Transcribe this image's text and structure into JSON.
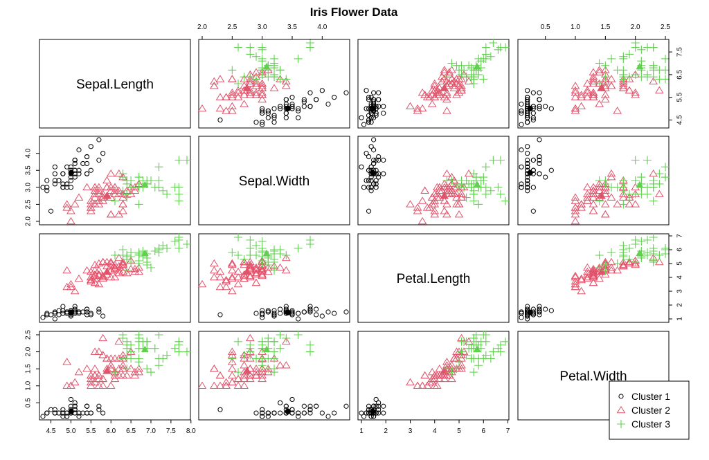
{
  "chart_data": {
    "type": "scatter",
    "title": "Iris Flower Data",
    "variables": [
      "Sepal.Length",
      "Sepal.Width",
      "Petal.Length",
      "Petal.Width"
    ],
    "ranges": {
      "Sepal.Length": [
        4.3,
        7.9
      ],
      "Sepal.Width": [
        2.0,
        4.4
      ],
      "Petal.Length": [
        1.0,
        6.9
      ],
      "Petal.Width": [
        0.1,
        2.5
      ]
    },
    "ticks": {
      "Sepal.Length": {
        "values": [
          4.5,
          5.0,
          5.5,
          6.0,
          6.5,
          7.0,
          7.5,
          8.0
        ],
        "labels": [
          "4.5",
          "5.0",
          "5.5",
          "6.0",
          "6.5",
          "7.0",
          "7.5",
          "8.0"
        ],
        "right_values": [
          4.5,
          5.5,
          6.5,
          7.5
        ],
        "right_labels": [
          "4.5",
          "5.5",
          "6.5",
          "7.5"
        ]
      },
      "Sepal.Width": {
        "values": [
          2.0,
          2.5,
          3.0,
          3.5,
          4.0
        ],
        "labels": [
          "2.0",
          "2.5",
          "3.0",
          "3.5",
          "4.0"
        ]
      },
      "Petal.Length": {
        "values": [
          1,
          2,
          3,
          4,
          5,
          6,
          7
        ],
        "labels": [
          "1",
          "2",
          "3",
          "4",
          "5",
          "6",
          "7"
        ]
      },
      "Petal.Width": {
        "values": [
          0.5,
          1.0,
          1.5,
          2.0,
          2.5
        ],
        "labels": [
          "0.5",
          "1.0",
          "1.5",
          "2.0",
          "2.5"
        ]
      }
    },
    "legend": {
      "position": "bottom-right",
      "entries": [
        {
          "label": "Cluster 1",
          "marker": "circle",
          "color": "#000000"
        },
        {
          "label": "Cluster 2",
          "marker": "triangle",
          "color": "#DF536B"
        },
        {
          "label": "Cluster 3",
          "marker": "plus",
          "color": "#61D04F"
        }
      ]
    },
    "series": [
      {
        "label": "Cluster 1",
        "marker": "circle",
        "color": "#000000",
        "centroid": [
          5.006,
          3.428,
          1.462,
          0.246
        ],
        "points": [
          [
            5.1,
            3.5,
            1.4,
            0.2
          ],
          [
            4.9,
            3.0,
            1.4,
            0.2
          ],
          [
            4.7,
            3.2,
            1.3,
            0.2
          ],
          [
            4.6,
            3.1,
            1.5,
            0.2
          ],
          [
            5.0,
            3.6,
            1.4,
            0.2
          ],
          [
            5.4,
            3.9,
            1.7,
            0.4
          ],
          [
            4.6,
            3.4,
            1.4,
            0.3
          ],
          [
            5.0,
            3.4,
            1.5,
            0.2
          ],
          [
            4.4,
            2.9,
            1.4,
            0.2
          ],
          [
            4.9,
            3.1,
            1.5,
            0.1
          ],
          [
            5.4,
            3.7,
            1.5,
            0.2
          ],
          [
            4.8,
            3.4,
            1.6,
            0.2
          ],
          [
            4.8,
            3.0,
            1.4,
            0.1
          ],
          [
            4.3,
            3.0,
            1.1,
            0.1
          ],
          [
            5.8,
            4.0,
            1.2,
            0.2
          ],
          [
            5.7,
            4.4,
            1.5,
            0.4
          ],
          [
            5.4,
            3.9,
            1.3,
            0.4
          ],
          [
            5.1,
            3.5,
            1.4,
            0.3
          ],
          [
            5.7,
            3.8,
            1.7,
            0.3
          ],
          [
            5.1,
            3.8,
            1.5,
            0.3
          ],
          [
            5.4,
            3.4,
            1.7,
            0.2
          ],
          [
            5.1,
            3.7,
            1.5,
            0.4
          ],
          [
            4.6,
            3.6,
            1.0,
            0.2
          ],
          [
            5.1,
            3.3,
            1.7,
            0.5
          ],
          [
            4.8,
            3.4,
            1.9,
            0.2
          ],
          [
            5.0,
            3.0,
            1.6,
            0.2
          ],
          [
            5.0,
            3.4,
            1.6,
            0.4
          ],
          [
            5.2,
            3.5,
            1.5,
            0.2
          ],
          [
            5.2,
            3.4,
            1.4,
            0.2
          ],
          [
            4.7,
            3.2,
            1.6,
            0.2
          ],
          [
            4.8,
            3.1,
            1.6,
            0.2
          ],
          [
            5.4,
            3.4,
            1.5,
            0.4
          ],
          [
            5.2,
            4.1,
            1.5,
            0.1
          ],
          [
            5.5,
            4.2,
            1.4,
            0.2
          ],
          [
            4.9,
            3.1,
            1.5,
            0.2
          ],
          [
            5.0,
            3.2,
            1.2,
            0.2
          ],
          [
            5.5,
            3.5,
            1.3,
            0.2
          ],
          [
            4.9,
            3.6,
            1.4,
            0.1
          ],
          [
            4.4,
            3.0,
            1.3,
            0.2
          ],
          [
            5.1,
            3.4,
            1.5,
            0.2
          ],
          [
            5.0,
            3.5,
            1.3,
            0.3
          ],
          [
            4.5,
            2.3,
            1.3,
            0.3
          ],
          [
            4.4,
            3.2,
            1.3,
            0.2
          ],
          [
            5.0,
            3.5,
            1.6,
            0.6
          ],
          [
            5.1,
            3.8,
            1.9,
            0.4
          ],
          [
            4.8,
            3.0,
            1.4,
            0.3
          ],
          [
            5.1,
            3.8,
            1.6,
            0.2
          ],
          [
            4.6,
            3.2,
            1.4,
            0.2
          ],
          [
            5.3,
            3.7,
            1.5,
            0.2
          ],
          [
            5.0,
            3.3,
            1.4,
            0.2
          ]
        ]
      },
      {
        "label": "Cluster 2",
        "marker": "triangle",
        "color": "#DF536B",
        "centroid": [
          5.902,
          2.748,
          4.394,
          1.434
        ],
        "points": [
          [
            5.5,
            2.3,
            4.0,
            1.3
          ],
          [
            6.5,
            2.8,
            4.6,
            1.5
          ],
          [
            5.7,
            2.8,
            4.5,
            1.3
          ],
          [
            6.3,
            3.3,
            4.7,
            1.6
          ],
          [
            4.9,
            2.4,
            3.3,
            1.0
          ],
          [
            6.6,
            2.9,
            4.6,
            1.3
          ],
          [
            5.2,
            2.7,
            3.9,
            1.4
          ],
          [
            5.0,
            2.0,
            3.5,
            1.0
          ],
          [
            5.9,
            3.0,
            4.2,
            1.5
          ],
          [
            6.0,
            2.2,
            4.0,
            1.0
          ],
          [
            6.1,
            2.9,
            4.7,
            1.4
          ],
          [
            5.6,
            2.9,
            3.6,
            1.3
          ],
          [
            6.7,
            3.1,
            4.4,
            1.4
          ],
          [
            5.6,
            3.0,
            4.5,
            1.5
          ],
          [
            5.8,
            2.7,
            4.1,
            1.0
          ],
          [
            6.2,
            2.2,
            4.5,
            1.5
          ],
          [
            5.6,
            2.5,
            3.9,
            1.1
          ],
          [
            5.9,
            3.2,
            4.8,
            1.8
          ],
          [
            6.1,
            2.8,
            4.0,
            1.3
          ],
          [
            6.3,
            2.5,
            4.9,
            1.5
          ],
          [
            6.1,
            2.8,
            4.7,
            1.2
          ],
          [
            6.4,
            2.9,
            4.3,
            1.3
          ],
          [
            6.6,
            3.0,
            4.4,
            1.4
          ],
          [
            6.0,
            2.9,
            4.5,
            1.5
          ],
          [
            5.7,
            2.6,
            3.5,
            1.0
          ],
          [
            5.5,
            2.4,
            3.8,
            1.1
          ],
          [
            5.5,
            2.4,
            3.7,
            1.0
          ],
          [
            5.8,
            2.7,
            3.9,
            1.2
          ],
          [
            6.0,
            2.7,
            5.1,
            1.6
          ],
          [
            5.4,
            3.0,
            4.5,
            1.5
          ],
          [
            6.0,
            3.4,
            4.5,
            1.6
          ],
          [
            6.7,
            3.1,
            4.7,
            1.5
          ],
          [
            6.3,
            2.3,
            4.4,
            1.3
          ],
          [
            5.6,
            3.0,
            4.1,
            1.3
          ],
          [
            5.5,
            2.5,
            4.0,
            1.3
          ],
          [
            5.5,
            2.6,
            4.4,
            1.2
          ],
          [
            6.1,
            3.0,
            4.6,
            1.4
          ],
          [
            5.8,
            2.6,
            4.0,
            1.2
          ],
          [
            5.0,
            2.3,
            3.3,
            1.0
          ],
          [
            5.6,
            2.7,
            4.2,
            1.3
          ],
          [
            5.7,
            3.0,
            4.2,
            1.2
          ],
          [
            5.7,
            2.9,
            4.2,
            1.3
          ],
          [
            6.2,
            2.9,
            4.3,
            1.3
          ],
          [
            5.1,
            2.5,
            3.0,
            1.1
          ],
          [
            5.7,
            2.8,
            4.1,
            1.3
          ],
          [
            5.8,
            2.7,
            5.1,
            1.9
          ],
          [
            4.9,
            2.5,
            4.5,
            1.7
          ],
          [
            5.7,
            2.5,
            5.0,
            2.0
          ],
          [
            5.8,
            2.8,
            5.1,
            2.4
          ],
          [
            6.0,
            2.2,
            5.0,
            1.5
          ],
          [
            5.6,
            2.8,
            4.9,
            2.0
          ],
          [
            6.3,
            2.7,
            4.9,
            1.8
          ],
          [
            6.2,
            2.8,
            4.8,
            1.8
          ],
          [
            6.1,
            3.0,
            4.9,
            1.8
          ],
          [
            6.3,
            2.8,
            5.1,
            1.5
          ],
          [
            6.0,
            3.0,
            4.8,
            1.8
          ],
          [
            5.8,
            2.7,
            5.1,
            1.9
          ],
          [
            6.3,
            2.5,
            5.0,
            1.9
          ],
          [
            6.5,
            3.0,
            5.2,
            2.0
          ],
          [
            6.2,
            3.4,
            5.4,
            2.3
          ],
          [
            5.9,
            3.0,
            5.1,
            1.8
          ],
          [
            5.6,
            2.9,
            3.6,
            1.3
          ]
        ]
      },
      {
        "label": "Cluster 3",
        "marker": "plus",
        "color": "#61D04F",
        "centroid": [
          6.85,
          3.074,
          5.742,
          2.071
        ],
        "points": [
          [
            7.0,
            3.2,
            4.7,
            1.4
          ],
          [
            6.4,
            3.2,
            4.5,
            1.5
          ],
          [
            6.9,
            3.1,
            4.9,
            1.5
          ],
          [
            6.7,
            3.0,
            5.0,
            1.7
          ],
          [
            6.3,
            3.3,
            6.0,
            2.5
          ],
          [
            7.1,
            3.0,
            5.9,
            2.1
          ],
          [
            6.3,
            2.9,
            5.6,
            1.8
          ],
          [
            6.5,
            3.0,
            5.8,
            2.2
          ],
          [
            7.6,
            3.0,
            6.6,
            2.1
          ],
          [
            7.3,
            2.9,
            6.3,
            1.8
          ],
          [
            6.7,
            2.5,
            5.8,
            1.8
          ],
          [
            7.2,
            3.6,
            6.1,
            2.5
          ],
          [
            6.5,
            3.2,
            5.1,
            2.0
          ],
          [
            6.4,
            2.7,
            5.3,
            1.9
          ],
          [
            6.8,
            3.0,
            5.5,
            2.1
          ],
          [
            6.4,
            3.2,
            5.3,
            2.3
          ],
          [
            6.5,
            3.0,
            5.5,
            1.8
          ],
          [
            7.7,
            3.8,
            6.7,
            2.2
          ],
          [
            7.7,
            2.6,
            6.9,
            2.3
          ],
          [
            6.9,
            3.2,
            5.7,
            2.3
          ],
          [
            7.7,
            2.8,
            6.7,
            2.0
          ],
          [
            6.7,
            3.3,
            5.7,
            2.1
          ],
          [
            7.2,
            3.2,
            6.0,
            1.8
          ],
          [
            6.4,
            2.8,
            5.6,
            2.1
          ],
          [
            7.2,
            3.0,
            5.8,
            1.6
          ],
          [
            7.4,
            2.8,
            6.1,
            1.9
          ],
          [
            7.9,
            3.8,
            6.4,
            2.0
          ],
          [
            6.4,
            2.8,
            5.6,
            2.2
          ],
          [
            6.1,
            2.6,
            5.6,
            1.4
          ],
          [
            7.7,
            3.0,
            6.1,
            2.3
          ],
          [
            6.3,
            3.4,
            5.6,
            2.4
          ],
          [
            6.4,
            3.1,
            5.5,
            1.8
          ],
          [
            6.9,
            3.1,
            5.4,
            2.1
          ],
          [
            6.7,
            3.1,
            5.6,
            2.4
          ],
          [
            6.9,
            3.1,
            5.1,
            2.3
          ],
          [
            6.8,
            3.2,
            5.9,
            2.3
          ],
          [
            6.7,
            3.3,
            5.7,
            2.5
          ],
          [
            6.7,
            3.0,
            5.2,
            2.3
          ]
        ]
      }
    ]
  }
}
